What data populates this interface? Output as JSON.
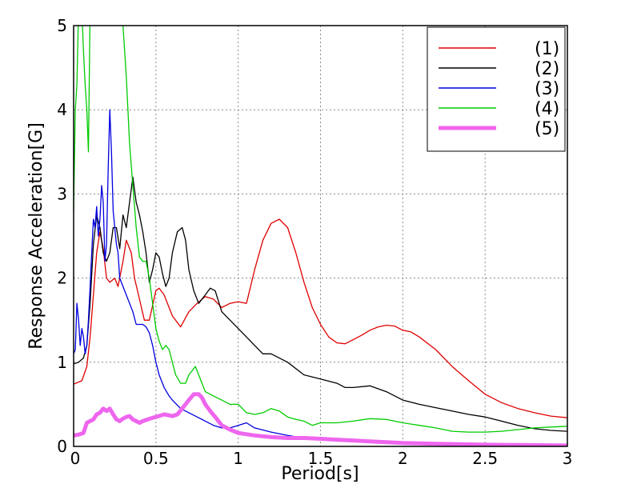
{
  "chart_data": {
    "type": "line",
    "title": "",
    "xlabel": "Period[s]",
    "ylabel": "Response Acceleration[G]",
    "xlim": [
      0,
      3
    ],
    "ylim": [
      0,
      5
    ],
    "x_ticks": [
      "0",
      "0.5",
      "1",
      "1.5",
      "2",
      "2.5",
      "3"
    ],
    "y_ticks": [
      "0",
      "1",
      "2",
      "3",
      "4",
      "5"
    ],
    "grid": true,
    "legend_position": "top-right",
    "series": [
      {
        "name": "(1)",
        "color": "#e00000",
        "points": [
          [
            0,
            0.74
          ],
          [
            0.05,
            0.78
          ],
          [
            0.08,
            0.95
          ],
          [
            0.1,
            1.3
          ],
          [
            0.12,
            1.8
          ],
          [
            0.14,
            2.3
          ],
          [
            0.16,
            2.55
          ],
          [
            0.18,
            2.35
          ],
          [
            0.2,
            2.0
          ],
          [
            0.22,
            1.95
          ],
          [
            0.25,
            2.0
          ],
          [
            0.27,
            1.9
          ],
          [
            0.3,
            2.2
          ],
          [
            0.32,
            2.45
          ],
          [
            0.35,
            2.3
          ],
          [
            0.37,
            2.0
          ],
          [
            0.4,
            1.75
          ],
          [
            0.43,
            1.5
          ],
          [
            0.46,
            1.5
          ],
          [
            0.5,
            1.85
          ],
          [
            0.52,
            1.88
          ],
          [
            0.55,
            1.8
          ],
          [
            0.6,
            1.55
          ],
          [
            0.65,
            1.42
          ],
          [
            0.7,
            1.6
          ],
          [
            0.75,
            1.7
          ],
          [
            0.8,
            1.78
          ],
          [
            0.85,
            1.75
          ],
          [
            0.9,
            1.65
          ],
          [
            0.95,
            1.7
          ],
          [
            1.0,
            1.72
          ],
          [
            1.05,
            1.7
          ],
          [
            1.1,
            2.1
          ],
          [
            1.15,
            2.45
          ],
          [
            1.2,
            2.65
          ],
          [
            1.25,
            2.7
          ],
          [
            1.3,
            2.6
          ],
          [
            1.35,
            2.3
          ],
          [
            1.4,
            1.95
          ],
          [
            1.45,
            1.65
          ],
          [
            1.5,
            1.45
          ],
          [
            1.55,
            1.3
          ],
          [
            1.6,
            1.23
          ],
          [
            1.65,
            1.22
          ],
          [
            1.7,
            1.27
          ],
          [
            1.75,
            1.32
          ],
          [
            1.8,
            1.38
          ],
          [
            1.85,
            1.42
          ],
          [
            1.9,
            1.44
          ],
          [
            1.95,
            1.43
          ],
          [
            2.0,
            1.38
          ],
          [
            2.05,
            1.36
          ],
          [
            2.1,
            1.3
          ],
          [
            2.2,
            1.15
          ],
          [
            2.3,
            0.95
          ],
          [
            2.4,
            0.78
          ],
          [
            2.5,
            0.62
          ],
          [
            2.6,
            0.52
          ],
          [
            2.7,
            0.45
          ],
          [
            2.8,
            0.4
          ],
          [
            2.9,
            0.36
          ],
          [
            3.0,
            0.34
          ]
        ]
      },
      {
        "name": "(2)",
        "color": "#000000",
        "points": [
          [
            0,
            0.98
          ],
          [
            0.03,
            1.0
          ],
          [
            0.06,
            1.05
          ],
          [
            0.08,
            1.2
          ],
          [
            0.1,
            1.7
          ],
          [
            0.12,
            2.4
          ],
          [
            0.14,
            2.75
          ],
          [
            0.16,
            2.6
          ],
          [
            0.18,
            2.3
          ],
          [
            0.2,
            2.2
          ],
          [
            0.22,
            2.3
          ],
          [
            0.24,
            2.6
          ],
          [
            0.26,
            2.6
          ],
          [
            0.28,
            2.35
          ],
          [
            0.3,
            2.75
          ],
          [
            0.32,
            2.6
          ],
          [
            0.34,
            2.9
          ],
          [
            0.36,
            3.2
          ],
          [
            0.38,
            2.9
          ],
          [
            0.4,
            2.75
          ],
          [
            0.42,
            2.55
          ],
          [
            0.44,
            2.3
          ],
          [
            0.46,
            1.95
          ],
          [
            0.48,
            2.1
          ],
          [
            0.5,
            2.3
          ],
          [
            0.52,
            2.25
          ],
          [
            0.54,
            2.05
          ],
          [
            0.56,
            1.9
          ],
          [
            0.58,
            2.0
          ],
          [
            0.6,
            2.3
          ],
          [
            0.63,
            2.55
          ],
          [
            0.66,
            2.6
          ],
          [
            0.68,
            2.45
          ],
          [
            0.7,
            2.1
          ],
          [
            0.73,
            1.85
          ],
          [
            0.76,
            1.7
          ],
          [
            0.8,
            1.8
          ],
          [
            0.83,
            1.88
          ],
          [
            0.86,
            1.85
          ],
          [
            0.9,
            1.6
          ],
          [
            0.95,
            1.5
          ],
          [
            1.0,
            1.4
          ],
          [
            1.05,
            1.3
          ],
          [
            1.1,
            1.2
          ],
          [
            1.15,
            1.1
          ],
          [
            1.2,
            1.1
          ],
          [
            1.3,
            1.0
          ],
          [
            1.4,
            0.85
          ],
          [
            1.5,
            0.8
          ],
          [
            1.6,
            0.75
          ],
          [
            1.65,
            0.7
          ],
          [
            1.7,
            0.7
          ],
          [
            1.8,
            0.72
          ],
          [
            1.9,
            0.65
          ],
          [
            2.0,
            0.55
          ],
          [
            2.1,
            0.5
          ],
          [
            2.2,
            0.46
          ],
          [
            2.3,
            0.42
          ],
          [
            2.4,
            0.38
          ],
          [
            2.5,
            0.35
          ],
          [
            2.6,
            0.3
          ],
          [
            2.7,
            0.25
          ],
          [
            2.8,
            0.21
          ],
          [
            2.9,
            0.19
          ],
          [
            3.0,
            0.18
          ]
        ]
      },
      {
        "name": "(3)",
        "color": "#0000e0",
        "points": [
          [
            0,
            1.1
          ],
          [
            0.01,
            1.15
          ],
          [
            0.02,
            1.7
          ],
          [
            0.03,
            1.5
          ],
          [
            0.04,
            1.2
          ],
          [
            0.05,
            1.4
          ],
          [
            0.06,
            1.3
          ],
          [
            0.07,
            1.1
          ],
          [
            0.08,
            1.2
          ],
          [
            0.09,
            1.5
          ],
          [
            0.1,
            1.9
          ],
          [
            0.11,
            2.3
          ],
          [
            0.12,
            2.7
          ],
          [
            0.13,
            2.6
          ],
          [
            0.14,
            2.85
          ],
          [
            0.15,
            2.5
          ],
          [
            0.16,
            2.7
          ],
          [
            0.17,
            3.1
          ],
          [
            0.18,
            2.9
          ],
          [
            0.19,
            2.2
          ],
          [
            0.2,
            2.4
          ],
          [
            0.21,
            3.3
          ],
          [
            0.22,
            4.0
          ],
          [
            0.23,
            3.5
          ],
          [
            0.24,
            2.8
          ],
          [
            0.25,
            2.6
          ],
          [
            0.26,
            2.4
          ],
          [
            0.27,
            2.3
          ],
          [
            0.28,
            2.0
          ],
          [
            0.3,
            1.9
          ],
          [
            0.32,
            1.8
          ],
          [
            0.34,
            1.7
          ],
          [
            0.36,
            1.6
          ],
          [
            0.38,
            1.45
          ],
          [
            0.4,
            1.45
          ],
          [
            0.42,
            1.45
          ],
          [
            0.44,
            1.42
          ],
          [
            0.46,
            1.35
          ],
          [
            0.48,
            1.2
          ],
          [
            0.5,
            1.0
          ],
          [
            0.52,
            0.85
          ],
          [
            0.55,
            0.7
          ],
          [
            0.58,
            0.6
          ],
          [
            0.6,
            0.55
          ],
          [
            0.65,
            0.45
          ],
          [
            0.7,
            0.4
          ],
          [
            0.75,
            0.35
          ],
          [
            0.8,
            0.3
          ],
          [
            0.85,
            0.25
          ],
          [
            0.9,
            0.22
          ],
          [
            0.95,
            0.22
          ],
          [
            1.0,
            0.25
          ],
          [
            1.05,
            0.28
          ],
          [
            1.1,
            0.22
          ],
          [
            1.2,
            0.17
          ],
          [
            1.3,
            0.13
          ],
          [
            1.4,
            0.1
          ],
          [
            1.5,
            0.09
          ],
          [
            1.6,
            0.07
          ],
          [
            1.7,
            0.06
          ],
          [
            1.8,
            0.05
          ],
          [
            1.9,
            0.04
          ],
          [
            2.0,
            0.03
          ],
          [
            2.2,
            0.02
          ],
          [
            2.5,
            0.01
          ],
          [
            3.0,
            0.0
          ]
        ]
      },
      {
        "name": "(4)",
        "color": "#00cc00",
        "points": [
          [
            0,
            2.8
          ],
          [
            0.01,
            4.0
          ],
          [
            0.02,
            4.3
          ],
          [
            0.03,
            5.2
          ],
          [
            0.05,
            5.2
          ],
          [
            0.06,
            4.7
          ],
          [
            0.07,
            4.3
          ],
          [
            0.08,
            4.0
          ],
          [
            0.09,
            3.5
          ],
          [
            0.1,
            5.2
          ],
          [
            0.15,
            5.2
          ],
          [
            0.2,
            5.2
          ],
          [
            0.25,
            5.2
          ],
          [
            0.28,
            5.2
          ],
          [
            0.3,
            5.0
          ],
          [
            0.32,
            4.4
          ],
          [
            0.34,
            3.6
          ],
          [
            0.36,
            3.1
          ],
          [
            0.38,
            2.6
          ],
          [
            0.4,
            2.25
          ],
          [
            0.42,
            2.2
          ],
          [
            0.44,
            2.2
          ],
          [
            0.46,
            2.0
          ],
          [
            0.48,
            1.7
          ],
          [
            0.5,
            1.4
          ],
          [
            0.52,
            1.25
          ],
          [
            0.54,
            1.15
          ],
          [
            0.56,
            1.2
          ],
          [
            0.58,
            1.15
          ],
          [
            0.6,
            1.0
          ],
          [
            0.62,
            0.85
          ],
          [
            0.65,
            0.75
          ],
          [
            0.68,
            0.75
          ],
          [
            0.7,
            0.85
          ],
          [
            0.72,
            0.9
          ],
          [
            0.74,
            0.95
          ],
          [
            0.76,
            0.85
          ],
          [
            0.78,
            0.75
          ],
          [
            0.8,
            0.65
          ],
          [
            0.85,
            0.6
          ],
          [
            0.9,
            0.55
          ],
          [
            0.95,
            0.5
          ],
          [
            1.0,
            0.5
          ],
          [
            1.05,
            0.4
          ],
          [
            1.1,
            0.38
          ],
          [
            1.15,
            0.4
          ],
          [
            1.2,
            0.45
          ],
          [
            1.25,
            0.42
          ],
          [
            1.3,
            0.35
          ],
          [
            1.35,
            0.32
          ],
          [
            1.4,
            0.3
          ],
          [
            1.45,
            0.25
          ],
          [
            1.5,
            0.28
          ],
          [
            1.6,
            0.28
          ],
          [
            1.7,
            0.3
          ],
          [
            1.8,
            0.33
          ],
          [
            1.9,
            0.32
          ],
          [
            2.0,
            0.28
          ],
          [
            2.1,
            0.25
          ],
          [
            2.2,
            0.22
          ],
          [
            2.3,
            0.18
          ],
          [
            2.4,
            0.17
          ],
          [
            2.5,
            0.17
          ],
          [
            2.6,
            0.18
          ],
          [
            2.7,
            0.2
          ],
          [
            2.8,
            0.22
          ],
          [
            2.9,
            0.23
          ],
          [
            3.0,
            0.24
          ]
        ]
      },
      {
        "name": "(5)",
        "color": "#ee66ee",
        "width": 5,
        "points": [
          [
            0,
            0.13
          ],
          [
            0.03,
            0.14
          ],
          [
            0.06,
            0.16
          ],
          [
            0.08,
            0.28
          ],
          [
            0.1,
            0.3
          ],
          [
            0.12,
            0.32
          ],
          [
            0.14,
            0.38
          ],
          [
            0.16,
            0.4
          ],
          [
            0.18,
            0.45
          ],
          [
            0.2,
            0.42
          ],
          [
            0.22,
            0.45
          ],
          [
            0.24,
            0.38
          ],
          [
            0.26,
            0.32
          ],
          [
            0.28,
            0.3
          ],
          [
            0.3,
            0.33
          ],
          [
            0.32,
            0.35
          ],
          [
            0.34,
            0.36
          ],
          [
            0.36,
            0.32
          ],
          [
            0.38,
            0.3
          ],
          [
            0.4,
            0.28
          ],
          [
            0.42,
            0.3
          ],
          [
            0.45,
            0.32
          ],
          [
            0.48,
            0.34
          ],
          [
            0.5,
            0.35
          ],
          [
            0.55,
            0.38
          ],
          [
            0.6,
            0.36
          ],
          [
            0.63,
            0.38
          ],
          [
            0.66,
            0.45
          ],
          [
            0.7,
            0.55
          ],
          [
            0.73,
            0.62
          ],
          [
            0.76,
            0.62
          ],
          [
            0.78,
            0.58
          ],
          [
            0.8,
            0.5
          ],
          [
            0.83,
            0.42
          ],
          [
            0.86,
            0.35
          ],
          [
            0.9,
            0.25
          ],
          [
            0.95,
            0.2
          ],
          [
            1.0,
            0.16
          ],
          [
            1.1,
            0.13
          ],
          [
            1.2,
            0.11
          ],
          [
            1.3,
            0.1
          ],
          [
            1.4,
            0.1
          ],
          [
            1.5,
            0.09
          ],
          [
            1.6,
            0.08
          ],
          [
            1.7,
            0.07
          ],
          [
            1.8,
            0.06
          ],
          [
            1.9,
            0.05
          ],
          [
            2.0,
            0.04
          ],
          [
            2.2,
            0.03
          ],
          [
            2.5,
            0.02
          ],
          [
            3.0,
            0.01
          ]
        ]
      }
    ]
  }
}
